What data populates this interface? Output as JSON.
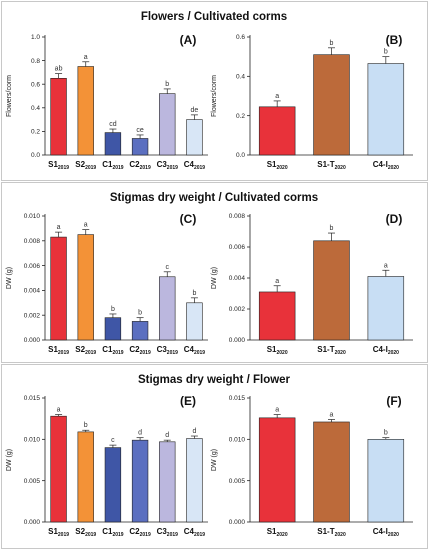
{
  "colors": {
    "S1": "#e8323a",
    "S2": "#f39237",
    "C1": "#3f56a6",
    "C2": "#5b6fc0",
    "C3": "#bbb7de",
    "C4": "#d8e6f6",
    "S1-T": "#bc6a3a",
    "C4-I": "#c8def4"
  },
  "sections": [
    {
      "title": "Flowers / Cultivated corms"
    },
    {
      "title": "Stigmas dry weight / Cultivated corms"
    },
    {
      "title": "Stigmas dry weight / Flower"
    }
  ],
  "chart_data": [
    {
      "panel": "(A)",
      "type": "bar",
      "ylabel": "Flowers/corm",
      "ylim": [
        0,
        1.0
      ],
      "yticks": [
        "0.0",
        "0.2",
        "0.4",
        "0.6",
        "0.8",
        "1.0"
      ],
      "ytick_values": [
        0,
        0.2,
        0.4,
        0.6,
        0.8,
        1.0
      ],
      "categories": [
        {
          "base": "S1",
          "sub": "2019"
        },
        {
          "base": "S2",
          "sub": "2019"
        },
        {
          "base": "C1",
          "sub": "2019"
        },
        {
          "base": "C2",
          "sub": "2019"
        },
        {
          "base": "C3",
          "sub": "2019"
        },
        {
          "base": "C4",
          "sub": "2019"
        }
      ],
      "values": [
        0.65,
        0.75,
        0.19,
        0.14,
        0.52,
        0.3
      ],
      "errors": [
        0.04,
        0.04,
        0.03,
        0.03,
        0.04,
        0.04
      ],
      "letters": [
        "ab",
        "a",
        "cd",
        "ce",
        "b",
        "de"
      ]
    },
    {
      "panel": "(B)",
      "type": "bar",
      "ylabel": "Flowers/corm",
      "ylim": [
        0,
        0.6
      ],
      "yticks": [
        "0.0",
        "0.2",
        "0.4",
        "0.6"
      ],
      "ytick_values": [
        0,
        0.2,
        0.4,
        0.6
      ],
      "categories": [
        {
          "base": "S1",
          "sub": "2020"
        },
        {
          "base": "S1-T",
          "sub": "2020"
        },
        {
          "base": "C4-I",
          "sub": "2020"
        }
      ],
      "values": [
        0.245,
        0.51,
        0.465
      ],
      "errors": [
        0.03,
        0.035,
        0.035
      ],
      "letters": [
        "a",
        "b",
        "b"
      ]
    },
    {
      "panel": "(C)",
      "type": "bar",
      "ylabel": "DW (g)",
      "ylim": [
        0,
        0.01
      ],
      "yticks": [
        "0.000",
        "0.002",
        "0.004",
        "0.006",
        "0.008",
        "0.010"
      ],
      "ytick_values": [
        0,
        0.002,
        0.004,
        0.006,
        0.008,
        0.01
      ],
      "categories": [
        {
          "base": "S1",
          "sub": "2019"
        },
        {
          "base": "S2",
          "sub": "2019"
        },
        {
          "base": "C1",
          "sub": "2019"
        },
        {
          "base": "C2",
          "sub": "2019"
        },
        {
          "base": "C3",
          "sub": "2019"
        },
        {
          "base": "C4",
          "sub": "2019"
        }
      ],
      "values": [
        0.0083,
        0.0085,
        0.0018,
        0.0015,
        0.0051,
        0.003
      ],
      "errors": [
        0.0004,
        0.0004,
        0.0003,
        0.0003,
        0.0004,
        0.0004
      ],
      "letters": [
        "a",
        "a",
        "b",
        "b",
        "c",
        "b"
      ]
    },
    {
      "panel": "(D)",
      "type": "bar",
      "ylabel": "DW (g)",
      "ylim": [
        0,
        0.008
      ],
      "yticks": [
        "0.000",
        "0.002",
        "0.004",
        "0.006",
        "0.008"
      ],
      "ytick_values": [
        0,
        0.002,
        0.004,
        0.006,
        0.008
      ],
      "categories": [
        {
          "base": "S1",
          "sub": "2020"
        },
        {
          "base": "S1-T",
          "sub": "2020"
        },
        {
          "base": "C4-I",
          "sub": "2020"
        }
      ],
      "values": [
        0.0031,
        0.0064,
        0.0041
      ],
      "errors": [
        0.0004,
        0.0005,
        0.0004
      ],
      "letters": [
        "a",
        "b",
        "a"
      ]
    },
    {
      "panel": "(E)",
      "type": "bar",
      "ylabel": "DW (g)",
      "ylim": [
        0,
        0.015
      ],
      "yticks": [
        "0.000",
        "0.005",
        "0.010",
        "0.015"
      ],
      "ytick_values": [
        0,
        0.005,
        0.01,
        0.015
      ],
      "categories": [
        {
          "base": "S1",
          "sub": "2019"
        },
        {
          "base": "S2",
          "sub": "2019"
        },
        {
          "base": "C1",
          "sub": "2019"
        },
        {
          "base": "C2",
          "sub": "2019"
        },
        {
          "base": "C3",
          "sub": "2019"
        },
        {
          "base": "C4",
          "sub": "2019"
        }
      ],
      "values": [
        0.0128,
        0.0109,
        0.009,
        0.0099,
        0.0097,
        0.0101
      ],
      "errors": [
        0.0002,
        0.0002,
        0.0003,
        0.0003,
        0.0002,
        0.0003
      ],
      "letters": [
        "a",
        "b",
        "c",
        "d",
        "d",
        "d"
      ]
    },
    {
      "panel": "(F)",
      "type": "bar",
      "ylabel": "DW (g)",
      "ylim": [
        0,
        0.015
      ],
      "yticks": [
        "0.000",
        "0.005",
        "0.010",
        "0.015"
      ],
      "ytick_values": [
        0,
        0.005,
        0.01,
        0.015
      ],
      "categories": [
        {
          "base": "S1",
          "sub": "2020"
        },
        {
          "base": "S1-T",
          "sub": "2020"
        },
        {
          "base": "C4-I",
          "sub": "2020"
        }
      ],
      "values": [
        0.0126,
        0.0121,
        0.01
      ],
      "errors": [
        0.0004,
        0.0003,
        0.0002
      ],
      "letters": [
        "a",
        "a",
        "b"
      ]
    }
  ]
}
